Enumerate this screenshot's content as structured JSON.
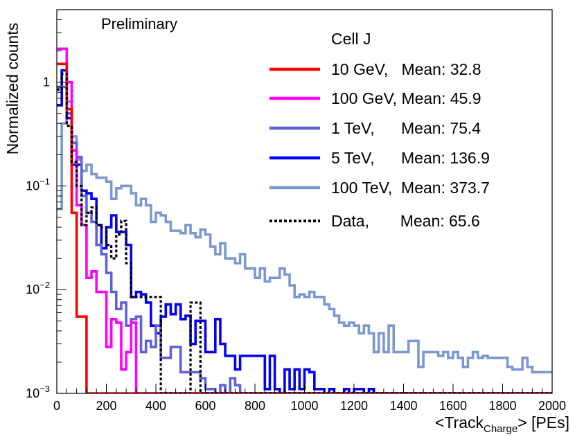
{
  "chart_data": {
    "type": "line",
    "style": "step-histogram",
    "title": "",
    "annotation": "Preliminary",
    "xlabel": {
      "main": "<Track",
      "sub": "Charge",
      "tail": "> [PEs]"
    },
    "ylabel": "Normalized counts",
    "xlim": [
      0,
      2000
    ],
    "ylim": [
      0.001,
      5
    ],
    "yscale": "log",
    "x_ticks": [
      "0",
      "200",
      "400",
      "600",
      "800",
      "1000",
      "1200",
      "1400",
      "1600",
      "1800",
      "2000"
    ],
    "y_ticks": [
      {
        "value": 1,
        "base": "1",
        "exp": ""
      },
      {
        "value": 0.1,
        "base": "10",
        "exp": "−1"
      },
      {
        "value": 0.01,
        "base": "10",
        "exp": "−2"
      },
      {
        "value": 0.001,
        "base": "10",
        "exp": "−3"
      }
    ],
    "bin_width": 20,
    "legend_header": "Cell J",
    "series": [
      {
        "name": "10 GeV",
        "label": "10 GeV,   Mean: 32.8",
        "color": "#ff0000",
        "dash": "",
        "values": [
          1.5,
          1.5,
          0.55,
          0.055,
          0.0055,
          0.0055,
          0.001
        ]
      },
      {
        "name": "100 GeV",
        "label": "100 GeV, Mean: 45.9",
        "color": "#ff00ff",
        "dash": "",
        "values": [
          2.1,
          2.1,
          1.0,
          0.22,
          0.065,
          0.042,
          0.013,
          0.015,
          0.0095,
          0.0095,
          0.0028,
          0.0052,
          0.0048,
          0.0017,
          0.0025,
          0.0048,
          0.001
        ]
      },
      {
        "name": "1 TeV",
        "label": "1 TeV,      Mean: 75.4",
        "color": "#6060d8",
        "dash": "",
        "values": [
          0.9,
          0.9,
          0.5,
          0.26,
          0.19,
          0.08,
          0.055,
          0.045,
          0.027,
          0.022,
          0.0145,
          0.0095,
          0.0065,
          0.0075,
          0.0045,
          0.0052,
          0.0055,
          0.0025,
          0.0032,
          0.0028,
          0.0045,
          0.0022,
          0.0022,
          0.0028,
          0.0028,
          0.0016,
          0.0016,
          0.0016,
          0.0016,
          0.0014,
          0.0011,
          0.0011,
          0.001,
          0.0012,
          0.001,
          0.0014,
          0.0012,
          0.001
        ]
      },
      {
        "name": "5 TeV",
        "label": "5 TeV,      Mean: 136.9",
        "color": "#0000ff",
        "dash": "",
        "values": [
          0.6,
          1.3,
          0.45,
          0.16,
          0.16,
          0.09,
          0.085,
          0.075,
          0.042,
          0.025,
          0.04,
          0.052,
          0.036,
          0.036,
          0.027,
          0.0085,
          0.0095,
          0.009,
          0.0075,
          0.0045,
          0.0038,
          0.0055,
          0.0072,
          0.0058,
          0.0072,
          0.0052,
          0.0056,
          0.003,
          0.005,
          0.005,
          0.0025,
          0.0025,
          0.0052,
          0.003,
          0.0023,
          0.0023,
          0.0017,
          0.0023,
          0.0023,
          0.0023,
          0.0023,
          0.0023,
          0.0011,
          0.0023,
          0.0011,
          0.001,
          0.0017,
          0.0011,
          0.0017,
          0.0011,
          0.0017,
          0.0016,
          0.0011,
          0.0011,
          0.001,
          0.0011,
          0.001,
          0.001,
          0.0011,
          0.001,
          0.0011,
          0.0011,
          0.001,
          0.0011,
          0.001,
          0.001,
          0.001,
          0.001,
          0.001,
          0.001
        ]
      },
      {
        "name": "100 TeV",
        "label": "100 TeV,  Mean: 373.7",
        "color": "#7b98d0",
        "dash": "",
        "values": [
          0.06,
          0.4,
          0.65,
          0.3,
          0.18,
          0.14,
          0.16,
          0.13,
          0.12,
          0.12,
          0.11,
          0.075,
          0.095,
          0.1,
          0.1,
          0.085,
          0.065,
          0.075,
          0.065,
          0.045,
          0.055,
          0.052,
          0.045,
          0.037,
          0.037,
          0.035,
          0.042,
          0.035,
          0.032,
          0.038,
          0.034,
          0.026,
          0.022,
          0.028,
          0.02,
          0.02,
          0.018,
          0.022,
          0.016,
          0.016,
          0.013,
          0.016,
          0.012,
          0.013,
          0.013,
          0.016,
          0.014,
          0.011,
          0.0085,
          0.009,
          0.0085,
          0.0095,
          0.0085,
          0.0085,
          0.0072,
          0.0065,
          0.0056,
          0.0048,
          0.0045,
          0.0048,
          0.0045,
          0.0038,
          0.0045,
          0.0038,
          0.0025,
          0.0038,
          0.0025,
          0.0045,
          0.0025,
          0.0025,
          0.0025,
          0.0032,
          0.0032,
          0.0018,
          0.0025,
          0.0025,
          0.0025,
          0.0023,
          0.0025,
          0.0022,
          0.0025,
          0.0022,
          0.0018,
          0.0022,
          0.0025,
          0.0022,
          0.0023,
          0.0022,
          0.0022,
          0.0022,
          0.0022,
          0.0018,
          0.0017,
          0.0017,
          0.0022,
          0.0018,
          0.0016,
          0.0016,
          0.0016,
          0.0016
        ]
      },
      {
        "name": "Data",
        "label": "Data,       Mean: 65.6",
        "color": "#000000",
        "dash": "4,3",
        "values": [
          0.85,
          1.2,
          0.38,
          0.17,
          0.1,
          0.042,
          0.055,
          0.062,
          0.042,
          0.04,
          0.027,
          0.02,
          0.034,
          0.046,
          0.018,
          0.0085,
          0.0085,
          0.0085,
          0.0085,
          0.0085,
          0.0085,
          0.001,
          0.001,
          0.001,
          0.001,
          0.001,
          0.001,
          0.0075,
          0.0075,
          0.001,
          0.001,
          0.001,
          0.001,
          0.001,
          0.001,
          0.001,
          0.001,
          0.001,
          0.001,
          0.001
        ]
      }
    ]
  }
}
